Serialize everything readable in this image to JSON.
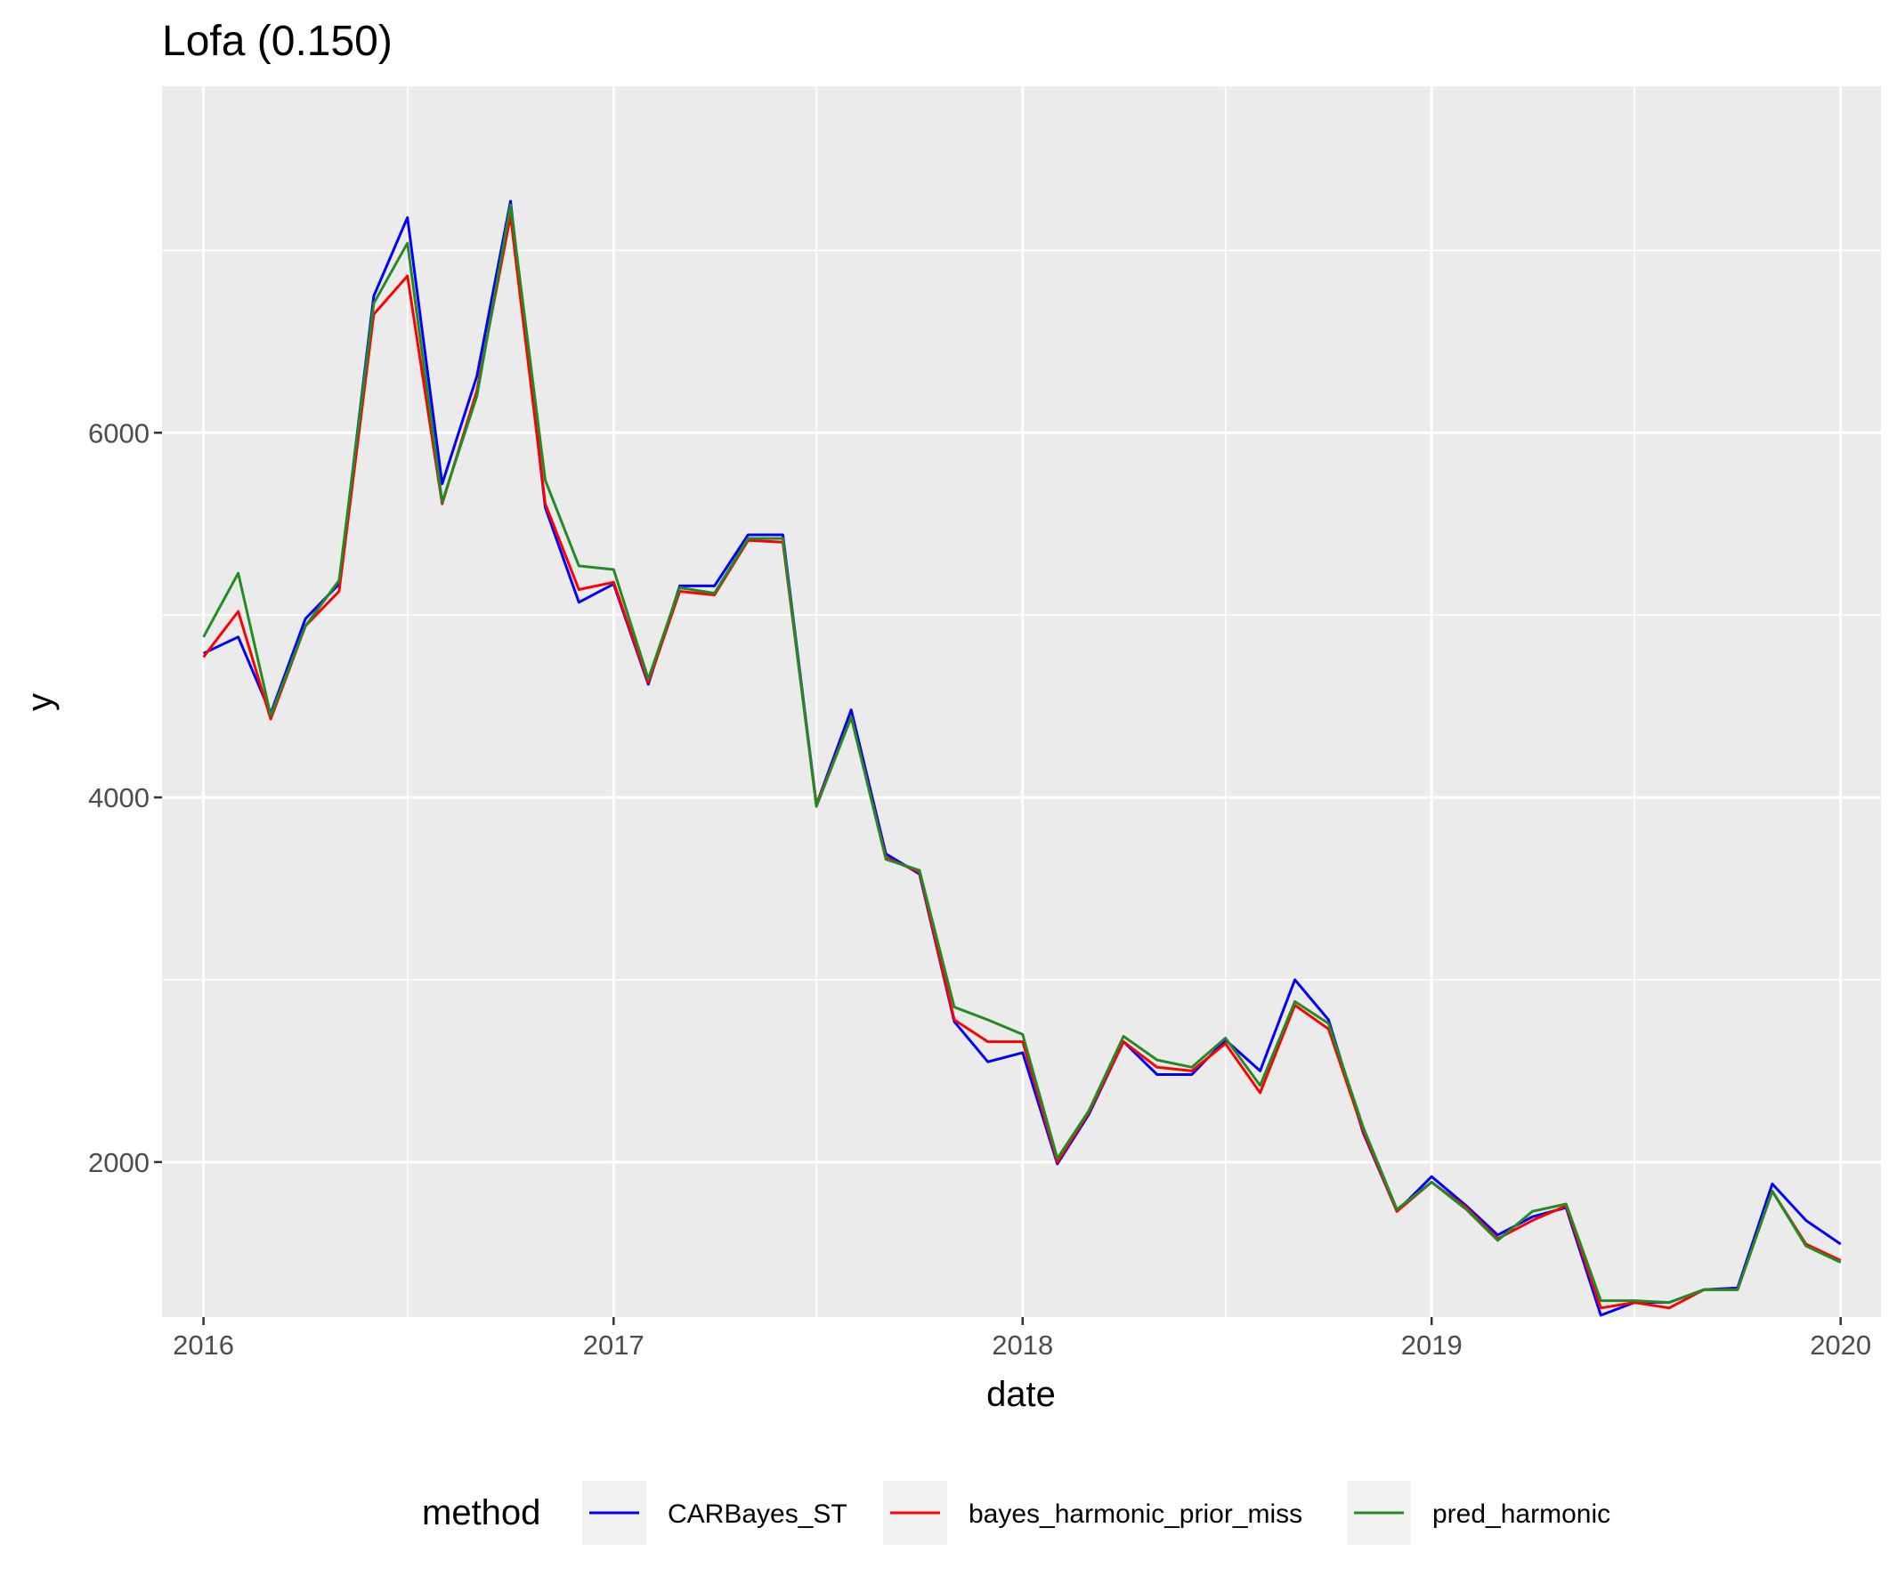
{
  "chart_data": {
    "type": "line",
    "title": "Lofa (0.150)",
    "xlabel": "date",
    "ylabel": "y",
    "xlim": [
      "2015-11-25",
      "2020-02-06"
    ],
    "ylim": [
      1150,
      7900
    ],
    "x_ticks": [
      "2016",
      "2017",
      "2018",
      "2019",
      "2020"
    ],
    "y_ticks": [
      "2000",
      "4000",
      "6000"
    ],
    "y_tick_values": [
      2000,
      4000,
      6000
    ],
    "grid": true,
    "background": "#ebebeb",
    "legend": {
      "title": "method",
      "position": "bottom"
    },
    "x": [
      "2016-01-01",
      "2016-02-01",
      "2016-03-01",
      "2016-04-01",
      "2016-05-01",
      "2016-06-01",
      "2016-07-01",
      "2016-08-01",
      "2016-09-01",
      "2016-10-01",
      "2016-11-01",
      "2016-12-01",
      "2017-01-01",
      "2017-02-01",
      "2017-03-01",
      "2017-04-01",
      "2017-05-01",
      "2017-06-01",
      "2017-07-01",
      "2017-08-01",
      "2017-09-01",
      "2017-10-01",
      "2017-11-01",
      "2017-12-01",
      "2018-01-01",
      "2018-02-01",
      "2018-03-01",
      "2018-04-01",
      "2018-05-01",
      "2018-06-01",
      "2018-07-01",
      "2018-08-01",
      "2018-09-01",
      "2018-10-01",
      "2018-11-01",
      "2018-12-01",
      "2019-01-01",
      "2019-02-01",
      "2019-03-01",
      "2019-04-01",
      "2019-05-01",
      "2019-06-01",
      "2019-07-01",
      "2019-08-01",
      "2019-09-01",
      "2019-10-01",
      "2019-11-01",
      "2019-12-01",
      "2020-01-01"
    ],
    "series": [
      {
        "name": "CARBayes_ST",
        "color": "#0000ff",
        "values": [
          4790,
          4880,
          4460,
          4980,
          5170,
          6750,
          7180,
          5720,
          6310,
          7270,
          5590,
          5070,
          5170,
          4620,
          5160,
          5160,
          5440,
          5440,
          3960,
          4480,
          3690,
          3580,
          2770,
          2550,
          2600,
          1990,
          2260,
          2660,
          2480,
          2480,
          2670,
          2500,
          3000,
          2780,
          2160,
          1730,
          1920,
          1760,
          1600,
          1700,
          1750,
          1160,
          1230,
          1230,
          1300,
          1310,
          1880,
          1680,
          1550
        ]
      },
      {
        "name": "bayes_harmonic_prior_miss",
        "color": "#ff0000",
        "values": [
          4770,
          5020,
          4430,
          4940,
          5130,
          6650,
          6860,
          5610,
          6230,
          7190,
          5610,
          5140,
          5180,
          4630,
          5130,
          5110,
          5410,
          5400,
          3960,
          4440,
          3670,
          3590,
          2780,
          2660,
          2660,
          2000,
          2270,
          2660,
          2520,
          2500,
          2650,
          2380,
          2860,
          2730,
          2170,
          1730,
          1890,
          1750,
          1580,
          1680,
          1760,
          1200,
          1230,
          1200,
          1300,
          1300,
          1840,
          1550,
          1460
        ]
      },
      {
        "name": "pred_harmonic",
        "color": "#228b22",
        "values": [
          4880,
          5230,
          4450,
          4940,
          5190,
          6710,
          7040,
          5620,
          6200,
          7250,
          5740,
          5270,
          5250,
          4650,
          5150,
          5120,
          5420,
          5420,
          3950,
          4440,
          3660,
          3600,
          2850,
          2780,
          2700,
          2020,
          2280,
          2690,
          2560,
          2520,
          2680,
          2420,
          2880,
          2760,
          2190,
          1740,
          1890,
          1740,
          1570,
          1730,
          1770,
          1240,
          1240,
          1230,
          1300,
          1300,
          1840,
          1540,
          1450
        ]
      }
    ]
  }
}
